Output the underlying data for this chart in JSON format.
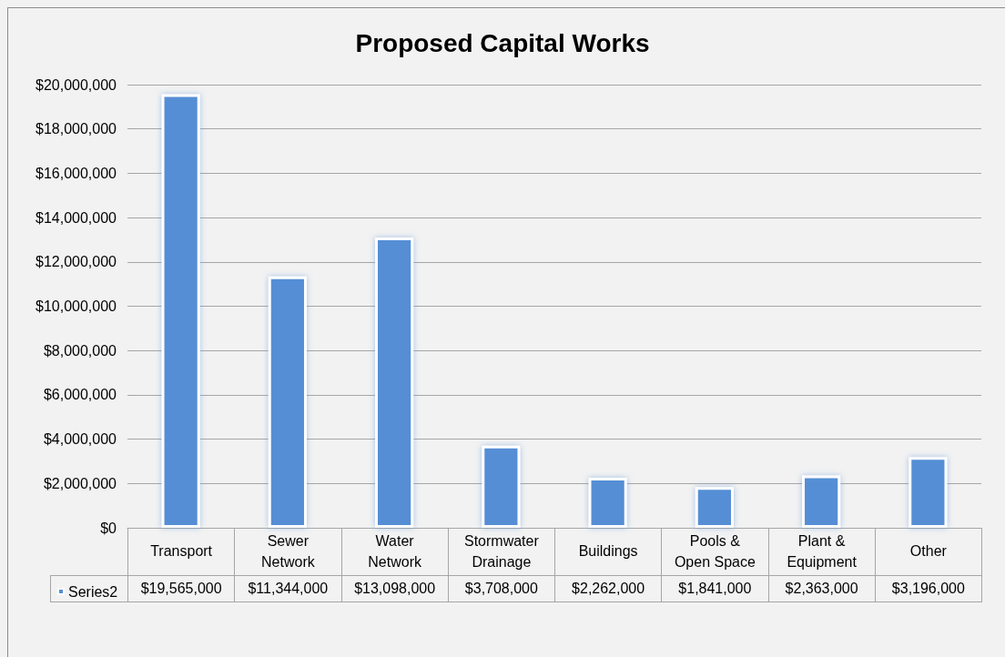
{
  "chart_data": {
    "type": "bar",
    "title": "Proposed Capital Works",
    "categories": [
      "Transport",
      "Sewer Network",
      "Water Network",
      "Stormwater Drainage",
      "Buildings",
      "Pools & Open Space",
      "Plant & Equipment",
      "Other"
    ],
    "series": [
      {
        "name": "Series2",
        "color": "#558ed5",
        "values": [
          19565000,
          11344000,
          13098000,
          3708000,
          2262000,
          1841000,
          2363000,
          3196000
        ],
        "value_labels": [
          "$19,565,000",
          "$11,344,000",
          "$13,098,000",
          "$3,708,000",
          "$2,262,000",
          "$1,841,000",
          "$2,363,000",
          "$3,196,000"
        ]
      }
    ],
    "ylim": [
      0,
      20000000
    ],
    "yticks": [
      {
        "value": 0,
        "label": "$0"
      },
      {
        "value": 2000000,
        "label": "$2,000,000"
      },
      {
        "value": 4000000,
        "label": "$4,000,000"
      },
      {
        "value": 6000000,
        "label": "$6,000,000"
      },
      {
        "value": 8000000,
        "label": "$8,000,000"
      },
      {
        "value": 10000000,
        "label": "$10,000,000"
      },
      {
        "value": 12000000,
        "label": "$12,000,000"
      },
      {
        "value": 14000000,
        "label": "$14,000,000"
      },
      {
        "value": 16000000,
        "label": "$16,000,000"
      },
      {
        "value": 18000000,
        "label": "$18,000,000"
      },
      {
        "value": 20000000,
        "label": "$20,000,000"
      }
    ],
    "grid": "y",
    "legend": "bottom left"
  }
}
